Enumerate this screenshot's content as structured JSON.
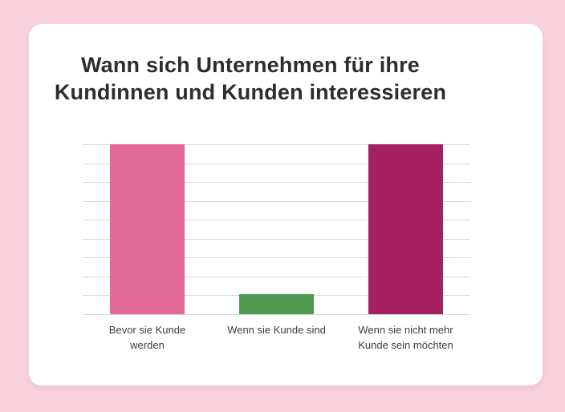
{
  "page": {
    "background_color": "#f8d1dc",
    "card_color": "#ffffff",
    "title_color": "#2d2d2d",
    "label_color": "#3d3d3d"
  },
  "chart_data": {
    "type": "bar",
    "title": "Wann sich Unternehmen für ihre Kundinnen und Kunden interessieren",
    "categories": [
      "Bevor sie Kunde werden",
      "Wenn sie Kunde sind",
      "Wenn sie nicht mehr Kunde sein möchten"
    ],
    "values": [
      100,
      12,
      100
    ],
    "bar_colors": [
      "#e26a97",
      "#4f9b52",
      "#a42061"
    ],
    "xlabel": "",
    "ylabel": "",
    "ylim": [
      0,
      100
    ],
    "grid": true,
    "gridline_count": 10,
    "gridline_color": "#d8d8d8",
    "legend_position": "none",
    "axis_tick_labels": "none",
    "value_labels": "none"
  }
}
